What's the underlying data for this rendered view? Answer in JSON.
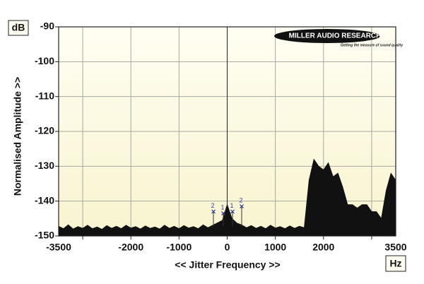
{
  "chart_data": {
    "type": "area",
    "y_unit": "dB",
    "x_unit": "Hz",
    "ylabel": "Normalised Amplitude >>",
    "xlabel": "<< Jitter Frequency >>",
    "logo": {
      "name": "MILLER AUDIO RESEARCH",
      "tagline": "Getting the measure of sound quality"
    },
    "xlim": [
      -3500,
      3500
    ],
    "ylim": [
      -150,
      -90
    ],
    "xticks": [
      -3500,
      -2000,
      -1000,
      0,
      1000,
      2000,
      3500
    ],
    "yticks": [
      -90,
      -100,
      -110,
      -120,
      -130,
      -140,
      -150
    ],
    "xgrid": [
      -3000,
      -2000,
      -1000,
      0,
      1000,
      2000,
      3000
    ],
    "grid": true,
    "x": [
      -3500,
      -3400,
      -3300,
      -3200,
      -3100,
      -3000,
      -2900,
      -2800,
      -2700,
      -2600,
      -2500,
      -2400,
      -2300,
      -2200,
      -2100,
      -2000,
      -1900,
      -1800,
      -1700,
      -1600,
      -1500,
      -1400,
      -1300,
      -1200,
      -1100,
      -1000,
      -900,
      -800,
      -700,
      -600,
      -500,
      -400,
      -300,
      -200,
      -100,
      0,
      100,
      200,
      300,
      400,
      500,
      600,
      700,
      800,
      900,
      1000,
      1100,
      1200,
      1300,
      1400,
      1500,
      1600,
      1700,
      1800,
      1900,
      2000,
      2100,
      2200,
      2300,
      2400,
      2500,
      2600,
      2700,
      2800,
      2900,
      3000,
      3100,
      3200,
      3300,
      3400,
      3500
    ],
    "series": [
      {
        "color": "#111111",
        "values": [
          -147.2,
          -147.9,
          -146.8,
          -148.0,
          -147.3,
          -147.8,
          -146.9,
          -147.9,
          -147.4,
          -148.1,
          -147.0,
          -147.8,
          -147.2,
          -147.9,
          -146.9,
          -147.7,
          -147.3,
          -148.0,
          -147.1,
          -147.8,
          -147.4,
          -148.0,
          -146.9,
          -147.8,
          -147.2,
          -147.9,
          -147.0,
          -147.7,
          -147.3,
          -147.9,
          -146.8,
          -147.6,
          -146.9,
          -146.2,
          -145.5,
          -141.0,
          -145.0,
          -146.3,
          -146.8,
          -147.6,
          -147.0,
          -147.8,
          -147.2,
          -147.9,
          -146.9,
          -147.7,
          -147.3,
          -147.9,
          -147.1,
          -147.8,
          -147.2,
          -147.6,
          -134.0,
          -128.0,
          -130.0,
          -131.0,
          -129.0,
          -133.0,
          -132.0,
          -136.0,
          -141.0,
          -141.0,
          -142.0,
          -141.0,
          -141.0,
          -143.0,
          -143.0,
          -145.0,
          -137.0,
          -132.0,
          -134.0
        ]
      }
    ],
    "markers": {
      "color": "#3a3aa0",
      "x": [
        -286,
        -81,
        110,
        301
      ],
      "values": [
        -143,
        -143.5,
        -143,
        -141.5
      ],
      "labels": [
        "2",
        "1",
        "1",
        "2"
      ]
    }
  }
}
